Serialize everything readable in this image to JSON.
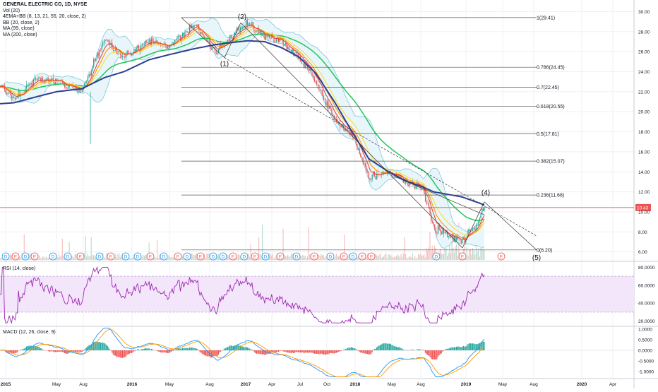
{
  "legend": {
    "title": "GENERAL ELECTRIC CO, 1D, NYSE",
    "studies": [
      "Vol (20)",
      "4EMA+BB (8, 13, 21, 55, 20, close, 2)",
      "BB (20, close, 2)",
      "MA (99, close)",
      "MA (200, close)"
    ]
  },
  "colors": {
    "grid": "#eef0f4",
    "price_line": "#e53935",
    "ma99": "#2e3f8f",
    "ma200": "#2e3f8f",
    "ema8": "#e53935",
    "ema13": "#ff9800",
    "ema21": "#f4e04d",
    "ema55": "#22c55e",
    "bb": "#7ec8d8",
    "bb_fill": "#e8f6fb",
    "fib": "#555555",
    "rsi": "#9c27b0",
    "rsi_band": "#f3e6fb",
    "macd": "#2196f3",
    "signal": "#ff9800",
    "hist_pos": "#26a69a",
    "hist_neg": "#ef5350",
    "label_bg": "#ef5350"
  },
  "price_pane": {
    "ylim": [
      5.2,
      30.6
    ],
    "y_ticks": [
      "30.00",
      "28.00",
      "26.00",
      "24.00",
      "22.00",
      "20.00",
      "18.00",
      "16.00",
      "14.00",
      "12.00",
      "10.00",
      "8.00",
      "6.00"
    ],
    "current_price_label": "10.43",
    "current_price": 10.43,
    "fib_levels": [
      {
        "label": "1(29.41)",
        "value": 29.41
      },
      {
        "label": "0.786(24.45)",
        "value": 24.45
      },
      {
        "label": "0.7(22.45)",
        "value": 22.45
      },
      {
        "label": "0.618(20.55)",
        "value": 20.55
      },
      {
        "label": "0.5(17.81)",
        "value": 17.81
      },
      {
        "label": "0.382(15.07)",
        "value": 15.07
      },
      {
        "label": "0.236(11.68)",
        "value": 11.68
      },
      {
        "label": "0(6.20)",
        "value": 6.2
      }
    ],
    "wave_labels": [
      "(1)",
      "(2)",
      "(4)",
      "(5)"
    ],
    "event_markers": [
      "D",
      "E",
      "D",
      "E",
      "D",
      "D",
      "E",
      "D",
      "E",
      "D",
      "D",
      "E",
      "D",
      "E",
      "D",
      "E",
      "D",
      "D",
      "E",
      "D",
      "E",
      "D",
      "E",
      "D",
      "E",
      "D",
      "E",
      "D",
      "E",
      "E",
      "D",
      "E",
      "E"
    ]
  },
  "rsi_pane": {
    "label": "RSI (14, close)",
    "ylim": [
      15,
      85
    ],
    "band": [
      30,
      70
    ],
    "y_ticks": [
      "80.0000",
      "60.0000",
      "40.0000",
      "20.0000"
    ]
  },
  "macd_pane": {
    "label": "MACD (12, 26, close, 9)",
    "ylim": [
      -1.3,
      1.1
    ],
    "y_ticks": [
      "1.0000",
      "0.5000",
      "0.0000",
      "-0.5000",
      "-1.0000"
    ]
  },
  "x_axis": {
    "labels": [
      "2015",
      "May",
      "Aug",
      "2016",
      "May",
      "Aug",
      "2017",
      "Apr",
      "Jul",
      "Oct",
      "2018",
      "May",
      "Aug",
      "2019",
      "May",
      "Aug",
      "2020",
      "Apr"
    ]
  },
  "chart_data": {
    "type": "line",
    "title": "GENERAL ELECTRIC CO, 1D, NYSE",
    "xlabel": "",
    "ylabel": "",
    "x": [
      "2015-01",
      "2015-03",
      "2015-05",
      "2015-07",
      "2015-09",
      "2015-11",
      "2016-01",
      "2016-03",
      "2016-05",
      "2016-07",
      "2016-09",
      "2016-11",
      "2017-01",
      "2017-03",
      "2017-05",
      "2017-07",
      "2017-09",
      "2017-11",
      "2018-01",
      "2018-03",
      "2018-05",
      "2018-07",
      "2018-09",
      "2018-10",
      "2018-12",
      "2019-01",
      "2019-02"
    ],
    "series": [
      {
        "name": "close",
        "values": [
          24.2,
          24.8,
          27.0,
          25.8,
          26.0,
          30.5,
          29.0,
          31.0,
          30.5,
          32.0,
          29.8,
          31.5,
          31.2,
          29.9,
          28.5,
          27.0,
          24.5,
          18.3,
          16.8,
          13.8,
          14.1,
          13.0,
          12.0,
          8.0,
          6.8,
          8.9,
          10.43
        ]
      },
      {
        "name": "MA (99, close)",
        "values": [
          24.3,
          24.0,
          24.4,
          25.0,
          25.4,
          26.6,
          27.5,
          28.6,
          29.0,
          29.8,
          30.4,
          30.6,
          30.7,
          30.5,
          30.1,
          29.3,
          28.2,
          25.4,
          22.5,
          19.6,
          17.1,
          15.2,
          14.0,
          12.9,
          11.9,
          11.2,
          10.8
        ]
      }
    ],
    "ylim": [
      5.2,
      30.6
    ]
  }
}
